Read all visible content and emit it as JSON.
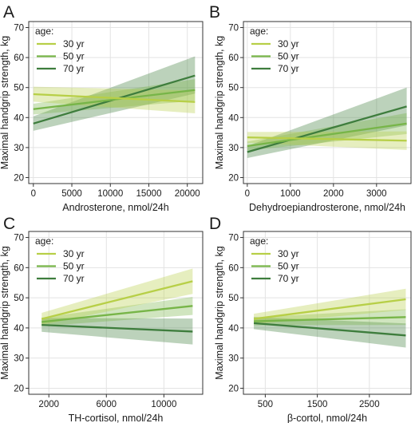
{
  "chart_data": [
    {
      "type": "line",
      "panel": "A",
      "xlabel": "Androsterone, nmol/24h",
      "ylabel": "Maximal handgrip strength, kg",
      "xlim": [
        -600,
        22000
      ],
      "ylim": [
        18,
        72
      ],
      "xticks": [
        0,
        5000,
        10000,
        15000,
        20000
      ],
      "yticks": [
        20,
        30,
        40,
        50,
        60,
        70
      ],
      "grid": true,
      "legend": {
        "title": "age:",
        "placement": "top-left"
      },
      "series": [
        {
          "name": "30 yr",
          "color": "#b7cf47",
          "x": [
            0,
            21000
          ],
          "y": [
            47.8,
            45.2
          ],
          "lower": [
            45.3,
            41.4
          ],
          "upper": [
            50.3,
            49.0
          ]
        },
        {
          "name": "50 yr",
          "color": "#77b548",
          "x": [
            0,
            21000
          ],
          "y": [
            42.8,
            49.2
          ],
          "lower": [
            41.0,
            45.6
          ],
          "upper": [
            44.6,
            52.8
          ]
        },
        {
          "name": "70 yr",
          "color": "#3e7d3d",
          "x": [
            0,
            21000
          ],
          "y": [
            38.0,
            54.0
          ],
          "lower": [
            35.6,
            48.0
          ],
          "upper": [
            40.4,
            60.4
          ]
        }
      ]
    },
    {
      "type": "line",
      "panel": "B",
      "xlabel": "Dehydroepiandrosterone, nmol/24h",
      "ylabel": "Maximal handgrip strength, kg",
      "xlim": [
        -90,
        3800
      ],
      "ylim": [
        18,
        72
      ],
      "xticks": [
        0,
        1000,
        2000,
        3000
      ],
      "yticks": [
        20,
        30,
        40,
        50,
        60,
        70
      ],
      "grid": true,
      "legend": {
        "title": "age:",
        "placement": "top-left"
      },
      "series": [
        {
          "name": "30 yr",
          "color": "#b7cf47",
          "x": [
            0,
            3700
          ],
          "y": [
            33.4,
            32.3
          ],
          "lower": [
            31.6,
            29.2
          ],
          "upper": [
            35.2,
            35.4
          ]
        },
        {
          "name": "50 yr",
          "color": "#77b548",
          "x": [
            0,
            3700
          ],
          "y": [
            30.5,
            38.0
          ],
          "lower": [
            29.0,
            34.5
          ],
          "upper": [
            32.0,
            41.5
          ]
        },
        {
          "name": "70 yr",
          "color": "#3e7d3d",
          "x": [
            0,
            3700
          ],
          "y": [
            28.5,
            43.7
          ],
          "lower": [
            26.5,
            37.4
          ],
          "upper": [
            30.5,
            50.0
          ]
        }
      ]
    },
    {
      "type": "line",
      "panel": "C",
      "xlabel": "TH-cortisol, nmol/24h",
      "ylabel": "Maximal handgrip strength, kg",
      "xlim": [
        600,
        12700
      ],
      "ylim": [
        18,
        72
      ],
      "xticks": [
        2000,
        6000,
        10000
      ],
      "yticks": [
        20,
        30,
        40,
        50,
        60,
        70
      ],
      "grid": true,
      "legend": {
        "title": "age:",
        "placement": "top-left"
      },
      "series": [
        {
          "name": "30 yr",
          "color": "#b7cf47",
          "x": [
            1500,
            12000
          ],
          "y": [
            43.0,
            55.5
          ],
          "lower": [
            41.0,
            51.3
          ],
          "upper": [
            45.0,
            59.7
          ]
        },
        {
          "name": "50 yr",
          "color": "#77b548",
          "x": [
            1500,
            12000
          ],
          "y": [
            42.0,
            47.3
          ],
          "lower": [
            40.6,
            44.3
          ],
          "upper": [
            43.4,
            50.3
          ]
        },
        {
          "name": "70 yr",
          "color": "#3e7d3d",
          "x": [
            1500,
            12000
          ],
          "y": [
            41.0,
            38.8
          ],
          "lower": [
            38.7,
            34.5
          ],
          "upper": [
            43.3,
            43.1
          ]
        }
      ]
    },
    {
      "type": "line",
      "panel": "D",
      "xlabel": "β-cortol, nmol/24h",
      "ylabel": "Maximal handgrip strength, kg",
      "xlim": [
        80,
        3300
      ],
      "ylim": [
        18,
        72
      ],
      "xticks": [
        500,
        1500,
        2500
      ],
      "yticks": [
        20,
        30,
        40,
        50,
        60,
        70
      ],
      "grid": true,
      "legend": {
        "title": "age:",
        "placement": "top-left"
      },
      "series": [
        {
          "name": "30 yr",
          "color": "#b7cf47",
          "x": [
            280,
            3200
          ],
          "y": [
            43.0,
            49.5
          ],
          "lower": [
            41.3,
            46.0
          ],
          "upper": [
            44.7,
            53.0
          ]
        },
        {
          "name": "50 yr",
          "color": "#77b548",
          "x": [
            280,
            3200
          ],
          "y": [
            42.2,
            43.6
          ],
          "lower": [
            40.9,
            41.0
          ],
          "upper": [
            43.5,
            46.2
          ]
        },
        {
          "name": "70 yr",
          "color": "#3e7d3d",
          "x": [
            280,
            3200
          ],
          "y": [
            41.6,
            37.5
          ],
          "lower": [
            39.6,
            33.5
          ],
          "upper": [
            43.6,
            41.5
          ]
        }
      ]
    }
  ]
}
